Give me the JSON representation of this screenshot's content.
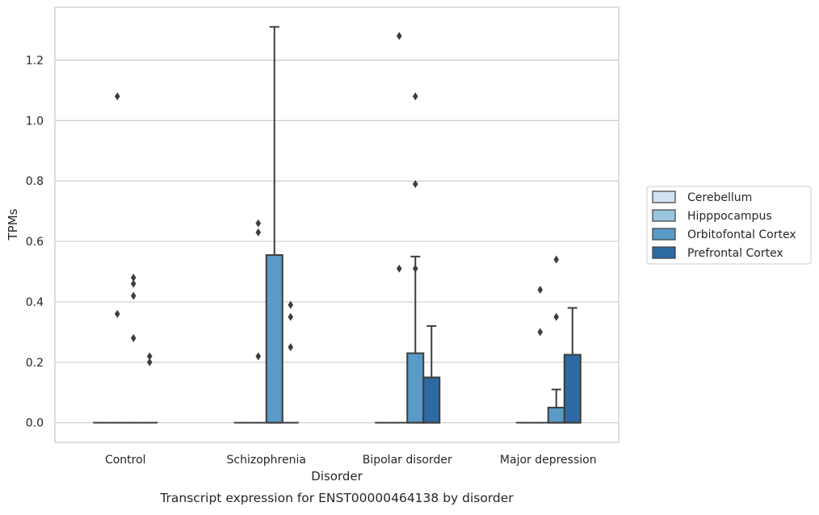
{
  "chart_data": {
    "type": "box",
    "caption": "Transcript expression for ENST00000464138 by disorder",
    "xlabel": "Disorder",
    "ylabel": "TPMs",
    "ylim": [
      -0.065,
      1.375
    ],
    "yticks": [
      0.0,
      0.2,
      0.4,
      0.6,
      0.8,
      1.0,
      1.2
    ],
    "ytick_labels": [
      "0.0",
      "0.2",
      "0.4",
      "0.6",
      "0.8",
      "1.0",
      "1.2"
    ],
    "grid": "horizontal",
    "legend_position": "right",
    "categories": [
      "Control",
      "Schizophrenia",
      "Bipolar disorder",
      "Major depression"
    ],
    "series": [
      {
        "name": "Cerebellum",
        "color": "#d1e2f2",
        "boxes": [
          {
            "q1": 0,
            "median": 0,
            "q3": 0,
            "whisker_low": 0,
            "whisker_high": 0,
            "outliers": []
          },
          {
            "q1": 0,
            "median": 0,
            "q3": 0,
            "whisker_low": 0,
            "whisker_high": 0,
            "outliers": []
          },
          {
            "q1": 0,
            "median": 0,
            "q3": 0,
            "whisker_low": 0,
            "whisker_high": 0,
            "outliers": []
          },
          {
            "q1": 0,
            "median": 0,
            "q3": 0,
            "whisker_low": 0,
            "whisker_high": 0,
            "outliers": []
          }
        ]
      },
      {
        "name": "Hipppocampus",
        "color": "#9ac6e0",
        "boxes": [
          {
            "q1": 0,
            "median": 0,
            "q3": 0,
            "whisker_low": 0,
            "whisker_high": 0,
            "outliers": [
              0.36,
              1.08
            ]
          },
          {
            "q1": 0,
            "median": 0,
            "q3": 0,
            "whisker_low": 0,
            "whisker_high": 0,
            "outliers": [
              0.22,
              0.63,
              0.66
            ]
          },
          {
            "q1": 0,
            "median": 0,
            "q3": 0,
            "whisker_low": 0,
            "whisker_high": 0,
            "outliers": [
              0.51,
              1.28
            ]
          },
          {
            "q1": 0,
            "median": 0,
            "q3": 0,
            "whisker_low": 0,
            "whisker_high": 0,
            "outliers": [
              0.3,
              0.44
            ]
          }
        ]
      },
      {
        "name": "Orbitofontal Cortex",
        "color": "#5a9ac6",
        "boxes": [
          {
            "q1": 0,
            "median": 0,
            "q3": 0,
            "whisker_low": 0,
            "whisker_high": 0,
            "outliers": [
              0.28,
              0.42,
              0.46,
              0.48
            ]
          },
          {
            "q1": 0,
            "median": 0,
            "q3": 0.555,
            "whisker_low": 0,
            "whisker_high": 1.31,
            "outliers": []
          },
          {
            "q1": 0,
            "median": 0,
            "q3": 0.23,
            "whisker_low": 0,
            "whisker_high": 0.55,
            "outliers": [
              0.51,
              0.79,
              1.08
            ]
          },
          {
            "q1": 0,
            "median": 0,
            "q3": 0.05,
            "whisker_low": 0,
            "whisker_high": 0.11,
            "outliers": [
              0.35,
              0.54
            ]
          }
        ]
      },
      {
        "name": "Prefrontal Cortex",
        "color": "#2d6aa3",
        "boxes": [
          {
            "q1": 0,
            "median": 0,
            "q3": 0,
            "whisker_low": 0,
            "whisker_high": 0,
            "outliers": [
              0.2,
              0.22
            ]
          },
          {
            "q1": 0,
            "median": 0,
            "q3": 0,
            "whisker_low": 0,
            "whisker_high": 0,
            "outliers": [
              0.25,
              0.35,
              0.39
            ]
          },
          {
            "q1": 0,
            "median": 0,
            "q3": 0.15,
            "whisker_low": 0,
            "whisker_high": 0.32,
            "outliers": []
          },
          {
            "q1": 0,
            "median": 0,
            "q3": 0.225,
            "whisker_low": 0,
            "whisker_high": 0.38,
            "outliers": []
          }
        ]
      }
    ]
  }
}
